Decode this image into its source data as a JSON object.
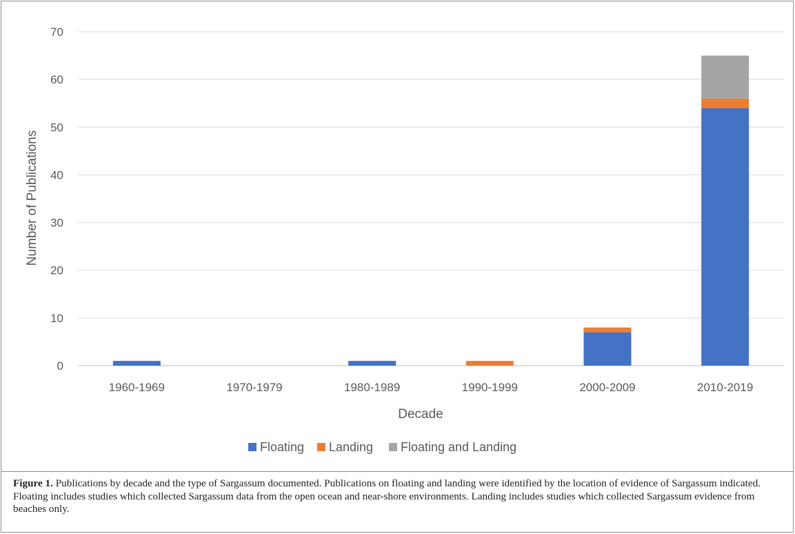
{
  "chart_data": {
    "type": "bar",
    "stacked": true,
    "categories": [
      "1960-1969",
      "1970-1979",
      "1980-1989",
      "1990-1999",
      "2000-2009",
      "2010-2019"
    ],
    "series": [
      {
        "name": "Floating",
        "color": "#4472C4",
        "values": [
          1,
          0,
          1,
          0,
          7,
          54
        ]
      },
      {
        "name": "Landing",
        "color": "#ED7D31",
        "values": [
          0,
          0,
          0,
          1,
          1,
          2
        ]
      },
      {
        "name": "Floating and Landing",
        "color": "#A5A5A5",
        "values": [
          0,
          0,
          0,
          0,
          0,
          9
        ]
      }
    ],
    "xlabel": "Decade",
    "ylabel": "Number of Publications",
    "ylim": [
      0,
      70
    ],
    "yticks": [
      "0",
      "10",
      "20",
      "30",
      "40",
      "50",
      "60",
      "70"
    ],
    "grid": true,
    "legend_position": "bottom"
  },
  "caption": {
    "label": "Figure 1.",
    "text": " Publications by decade and the type of Sargassum documented. Publications on floating and landing were identified by the location of evidence of Sargassum indicated. Floating includes studies which collected Sargassum data from the open ocean and near-shore environments. Landing includes studies which collected Sargassum evidence from beaches only."
  }
}
